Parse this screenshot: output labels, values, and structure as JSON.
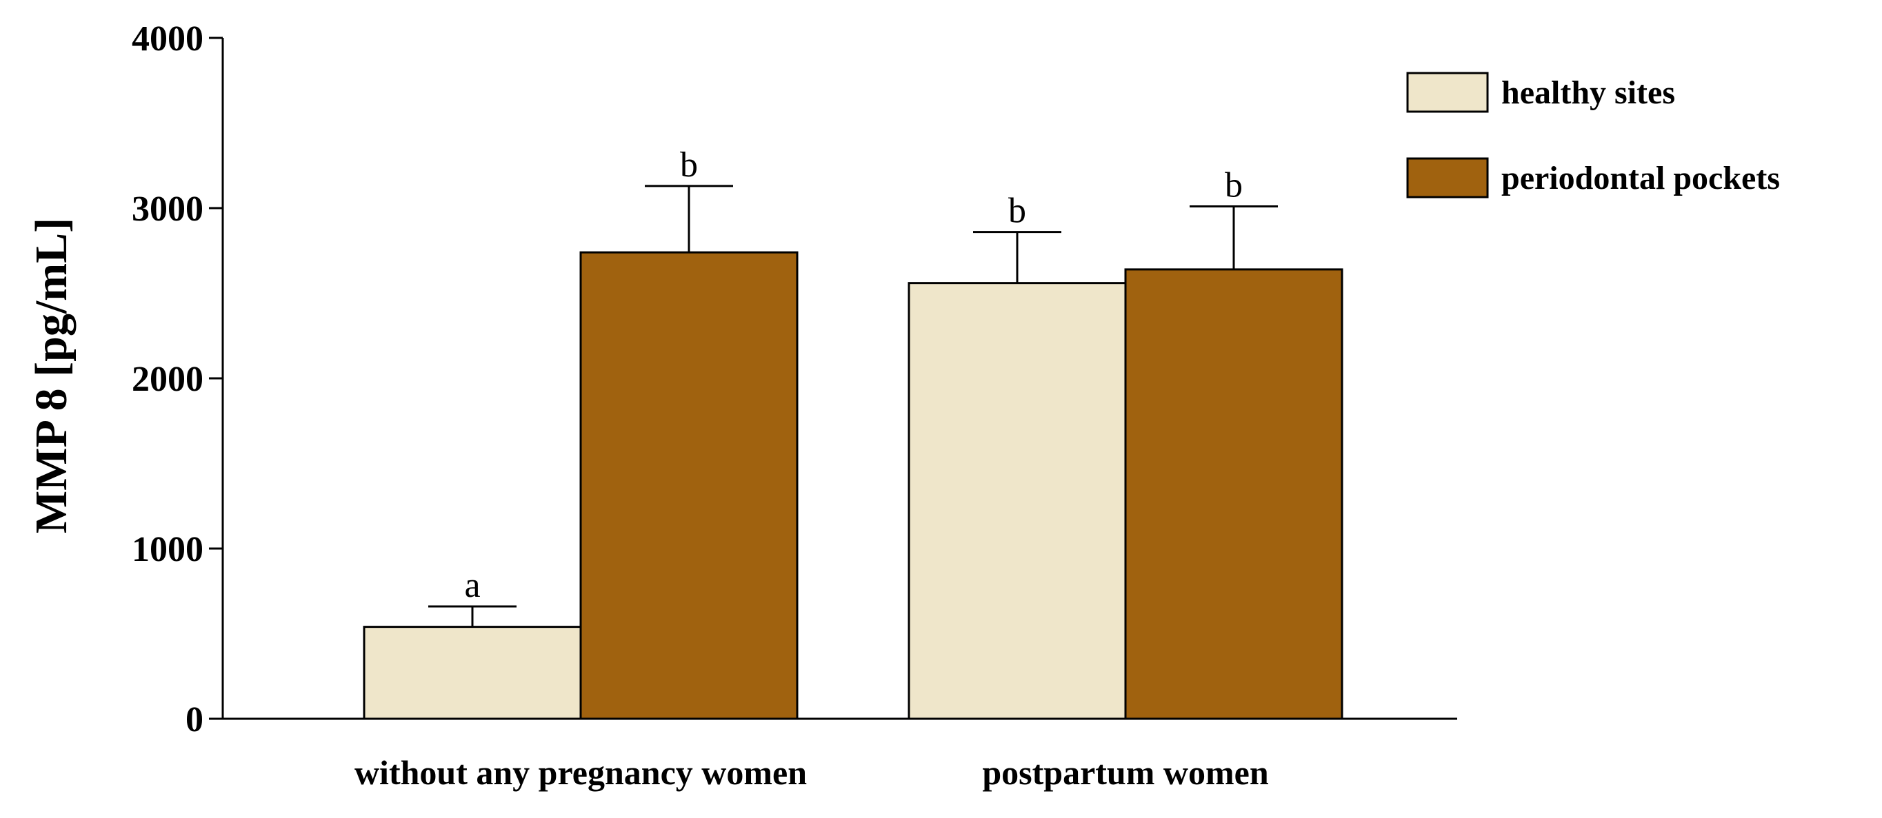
{
  "chart_data": {
    "type": "bar",
    "title": "",
    "xlabel": "",
    "ylabel": "MMP 8 [pg/mL]",
    "ylim": [
      0,
      4000
    ],
    "yticks": [
      0,
      1000,
      2000,
      3000,
      4000
    ],
    "categories": [
      "without any pregnancy women",
      "postpartum women"
    ],
    "series": [
      {
        "name": "healthy sites",
        "color": "#EFE6CA",
        "values": [
          540,
          2560
        ],
        "errors": [
          120,
          300
        ],
        "labels": [
          "a",
          "b"
        ]
      },
      {
        "name": "periodontal pockets",
        "color": "#A0620F",
        "values": [
          2740,
          2640
        ],
        "errors": [
          390,
          370
        ],
        "labels": [
          "b",
          "b"
        ]
      }
    ],
    "legend_position": "top-right",
    "grid": false
  }
}
